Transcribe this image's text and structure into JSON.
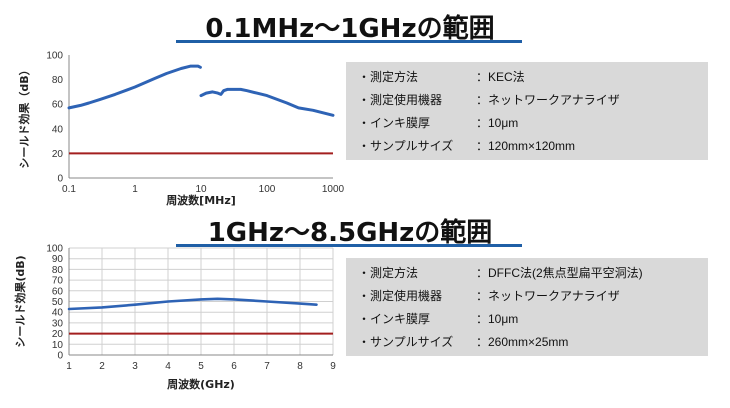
{
  "sections": [
    {
      "title": "0.1MHz～1GHzの範囲",
      "info": [
        {
          "label": "・測定方法",
          "value": "：KEC法"
        },
        {
          "label": "・測定使用機器",
          "value": "：ネットワークアナライザ"
        },
        {
          "label": "・インキ膜厚",
          "value": "：10μm"
        },
        {
          "label": "・サンプルサイズ",
          "value": "：120mm×120mm"
        }
      ]
    },
    {
      "title": "1GHz～8.5GHzの範囲",
      "info": [
        {
          "label": "・測定方法",
          "value": "：DFFC法(2焦点型扁平空洞法)"
        },
        {
          "label": "・測定使用機器",
          "value": "：ネットワークアナライザ"
        },
        {
          "label": "・インキ膜厚",
          "value": "：10μm"
        },
        {
          "label": "・サンプルサイズ",
          "value": "：260mm×25mm"
        }
      ]
    }
  ],
  "colors": {
    "series": "#2e63b5",
    "reference": "#a31f1f",
    "panel": "#d9d9d9",
    "rule": "#1f5fa6"
  },
  "chart_data": [
    {
      "type": "line",
      "xscale": "log",
      "xlim": [
        0.1,
        1000
      ],
      "ylim": [
        0,
        100
      ],
      "xticks": [
        "0.1",
        "1",
        "10",
        "100",
        "1000"
      ],
      "yticks": [
        "0",
        "20",
        "40",
        "60",
        "80",
        "100"
      ],
      "xlabel": "周波数[MHz]",
      "ylabel": "シールド効果（dB）",
      "grid": false,
      "series": [
        {
          "x": [
            0.1,
            0.15,
            0.2,
            0.3,
            0.5,
            1,
            2,
            3,
            5,
            7,
            9,
            9.8
          ],
          "y": [
            57,
            59,
            61,
            64,
            68,
            74,
            81,
            85,
            89,
            91,
            91,
            90
          ]
        },
        {
          "x": [
            10,
            12,
            15,
            18,
            20,
            22,
            25,
            30,
            40,
            50,
            70,
            100,
            200,
            300,
            500,
            1000
          ],
          "y": [
            67,
            69,
            70,
            69,
            68,
            71,
            72,
            72,
            72,
            71,
            69,
            67,
            61,
            57,
            55,
            51
          ]
        }
      ],
      "reference_y": 20
    },
    {
      "type": "line",
      "xlim": [
        1,
        9
      ],
      "ylim": [
        0,
        100
      ],
      "xticks": [
        "1",
        "2",
        "3",
        "4",
        "5",
        "6",
        "7",
        "8",
        "9"
      ],
      "yticks": [
        "0",
        "10",
        "20",
        "30",
        "40",
        "50",
        "60",
        "70",
        "80",
        "90",
        "100"
      ],
      "xlabel": "周波数(GHz)",
      "ylabel": "シールド効果(dB)",
      "grid": true,
      "series": [
        {
          "x": [
            1,
            2,
            3,
            4,
            5,
            5.5,
            6,
            7,
            8,
            8.5
          ],
          "y": [
            43,
            44.5,
            47,
            50,
            52,
            52.5,
            52,
            50,
            48,
            47
          ]
        }
      ],
      "reference_y": 20
    }
  ]
}
